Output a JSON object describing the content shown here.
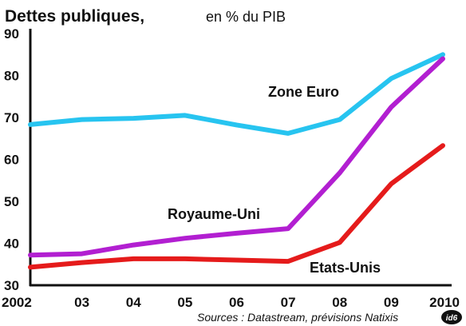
{
  "chart_data": {
    "type": "line",
    "title": "Dettes publiques,",
    "subtitle": "en % du PIB",
    "x": [
      "2002",
      "03",
      "04",
      "05",
      "06",
      "07",
      "08",
      "09",
      "2010"
    ],
    "ylim": [
      30,
      90
    ],
    "yticks": [
      30,
      40,
      50,
      60,
      70,
      80,
      90
    ],
    "grid": false,
    "series": [
      {
        "name": "Zone Euro",
        "color": "#27c4f0",
        "values": [
          68.3,
          69.5,
          69.8,
          70.5,
          68.2,
          66.2,
          69.5,
          79.3,
          85.0
        ]
      },
      {
        "name": "Royaume-Uni",
        "color": "#b21fd1",
        "values": [
          37.2,
          37.5,
          39.6,
          41.2,
          42.4,
          43.5,
          56.8,
          72.5,
          84.0
        ]
      },
      {
        "name": "Etats-Unis",
        "color": "#e51b1b",
        "values": [
          34.3,
          35.4,
          36.3,
          36.3,
          36.0,
          35.7,
          40.2,
          54.2,
          63.3
        ]
      }
    ],
    "source": "Sources : Datastream, prévisions Natixis",
    "logo_text": "id6"
  }
}
